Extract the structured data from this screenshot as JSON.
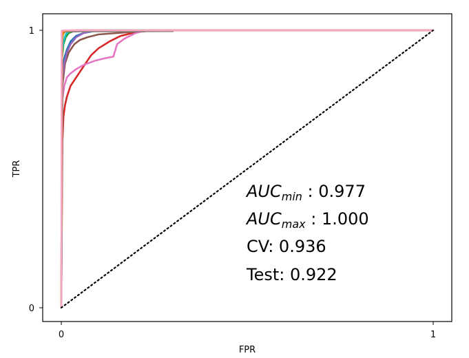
{
  "chart_data": {
    "type": "line",
    "xlabel": "FPR",
    "ylabel": "TPR",
    "xlim": [
      0,
      1
    ],
    "ylim": [
      0,
      1
    ],
    "xticks": [
      "0",
      "1"
    ],
    "yticks": [
      "0",
      "1"
    ],
    "grid": false,
    "diagonal": {
      "points": [
        [
          0,
          0
        ],
        [
          1,
          1
        ]
      ],
      "style": "dotted",
      "color": "#000000"
    },
    "series": [
      {
        "color": "#d62728",
        "points": [
          [
            0,
            0
          ],
          [
            0.003,
            0.6
          ],
          [
            0.006,
            0.69
          ],
          [
            0.01,
            0.73
          ],
          [
            0.015,
            0.76
          ],
          [
            0.025,
            0.8
          ],
          [
            0.04,
            0.83
          ],
          [
            0.06,
            0.87
          ],
          [
            0.08,
            0.91
          ],
          [
            0.1,
            0.935
          ],
          [
            0.13,
            0.96
          ],
          [
            0.16,
            0.98
          ],
          [
            0.2,
            0.993
          ],
          [
            0.25,
            1.0
          ],
          [
            1,
            1
          ]
        ]
      },
      {
        "color": "#e377c2",
        "points": [
          [
            0,
            0
          ],
          [
            0.003,
            0.75
          ],
          [
            0.008,
            0.8
          ],
          [
            0.015,
            0.83
          ],
          [
            0.025,
            0.845
          ],
          [
            0.04,
            0.86
          ],
          [
            0.06,
            0.875
          ],
          [
            0.09,
            0.89
          ],
          [
            0.12,
            0.9
          ],
          [
            0.14,
            0.905
          ],
          [
            0.15,
            0.95
          ],
          [
            0.17,
            0.97
          ],
          [
            0.2,
            0.99
          ],
          [
            0.23,
            1.0
          ],
          [
            1,
            1
          ]
        ]
      },
      {
        "color": "#8c564b",
        "points": [
          [
            0,
            0
          ],
          [
            0.003,
            0.8
          ],
          [
            0.01,
            0.88
          ],
          [
            0.02,
            0.92
          ],
          [
            0.035,
            0.95
          ],
          [
            0.05,
            0.965
          ],
          [
            0.07,
            0.975
          ],
          [
            0.1,
            0.985
          ],
          [
            0.15,
            0.99
          ],
          [
            0.2,
            0.995
          ],
          [
            0.22,
            1.0
          ],
          [
            1,
            1
          ]
        ]
      },
      {
        "color": "#1f77b4",
        "points": [
          [
            0,
            0
          ],
          [
            0.003,
            0.85
          ],
          [
            0.008,
            0.9
          ],
          [
            0.015,
            0.93
          ],
          [
            0.025,
            0.96
          ],
          [
            0.04,
            0.98
          ],
          [
            0.06,
            0.99
          ],
          [
            0.08,
            0.995
          ],
          [
            0.1,
            1.0
          ],
          [
            1,
            1
          ]
        ]
      },
      {
        "color": "#9467bd",
        "points": [
          [
            0,
            0
          ],
          [
            0.003,
            0.83
          ],
          [
            0.008,
            0.88
          ],
          [
            0.015,
            0.92
          ],
          [
            0.025,
            0.95
          ],
          [
            0.04,
            0.975
          ],
          [
            0.06,
            0.99
          ],
          [
            0.09,
            1.0
          ],
          [
            1,
            1
          ]
        ]
      },
      {
        "color": "#2ca02c",
        "points": [
          [
            0,
            0
          ],
          [
            0.002,
            0.9
          ],
          [
            0.006,
            0.95
          ],
          [
            0.012,
            0.975
          ],
          [
            0.02,
            0.99
          ],
          [
            0.03,
            0.995
          ],
          [
            0.05,
            1.0
          ],
          [
            1,
            1
          ]
        ]
      },
      {
        "color": "#17becf",
        "points": [
          [
            0,
            0
          ],
          [
            0.002,
            0.92
          ],
          [
            0.006,
            0.96
          ],
          [
            0.012,
            0.985
          ],
          [
            0.02,
            0.995
          ],
          [
            0.04,
            1.0
          ],
          [
            1,
            1
          ]
        ]
      },
      {
        "color": "#bcbd22",
        "points": [
          [
            0,
            0
          ],
          [
            0.002,
            0.96
          ],
          [
            0.005,
            0.985
          ],
          [
            0.01,
            0.995
          ],
          [
            0.02,
            0.997
          ],
          [
            0.05,
            0.998
          ],
          [
            0.3,
            0.998
          ],
          [
            0.3,
            1.0
          ],
          [
            1,
            1
          ]
        ]
      },
      {
        "color": "#7f7f7f",
        "points": [
          [
            0,
            0
          ],
          [
            0.002,
            0.97
          ],
          [
            0.004,
            0.99
          ],
          [
            0.01,
            0.995
          ],
          [
            0.05,
            0.996
          ],
          [
            0.3,
            0.997
          ],
          [
            0.3,
            1.0
          ],
          [
            1,
            1
          ]
        ]
      },
      {
        "color": "#ff7f0e",
        "points": [
          [
            0,
            0
          ],
          [
            0.002,
            0.98
          ],
          [
            0.005,
            0.995
          ],
          [
            0.01,
            0.998
          ],
          [
            0.03,
            1.0
          ],
          [
            1,
            1
          ]
        ]
      },
      {
        "color": "#f7a8c8",
        "points": [
          [
            0,
            0
          ],
          [
            0.001,
            0.999
          ],
          [
            0.01,
            1.0
          ],
          [
            1,
            1
          ]
        ]
      }
    ],
    "annotations": [
      {
        "italic": "AUC",
        "sub": "min",
        "rest": " : 0.977"
      },
      {
        "italic": "AUC",
        "sub": "max",
        "rest": " : 1.000"
      },
      {
        "text": "CV: 0.936"
      },
      {
        "text": "Test: 0.922"
      }
    ]
  }
}
